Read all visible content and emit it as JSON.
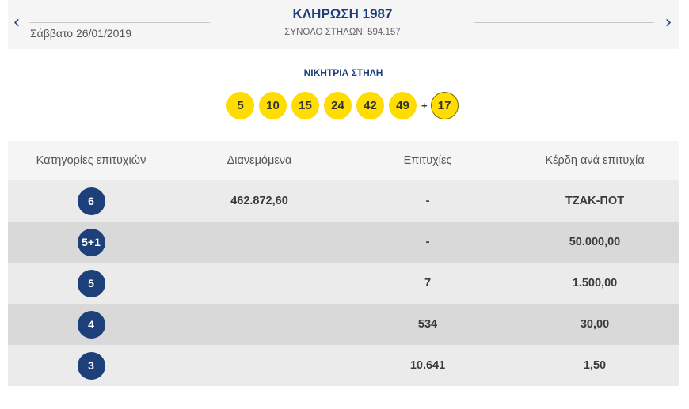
{
  "header": {
    "prev_icon": "‹",
    "next_icon": "›",
    "date": "Σάββατο 26/01/2019",
    "title": "ΚΛΗΡΩΣΗ 1987",
    "total": "ΣΥΝΟΛΟ ΣΤΗΛΩΝ: 594.157"
  },
  "winning": {
    "label": "ΝΙΚΗΤΡΙΑ ΣΤΗΛΗ",
    "numbers": [
      "5",
      "10",
      "15",
      "24",
      "42",
      "49"
    ],
    "plus": "+",
    "bonus": "17"
  },
  "table": {
    "headers": [
      "Κατηγορίες επιτυχιών",
      "Διανεμόμενα",
      "Επιτυχίες",
      "Κέρδη ανά επιτυχία"
    ],
    "rows": [
      {
        "category": "6",
        "distributed": "462.872,60",
        "winners": "-",
        "prize": "ΤΖΑΚ-ΠΟΤ"
      },
      {
        "category": "5+1",
        "distributed": "",
        "winners": "-",
        "prize": "50.000,00"
      },
      {
        "category": "5",
        "distributed": "",
        "winners": "7",
        "prize": "1.500,00"
      },
      {
        "category": "4",
        "distributed": "",
        "winners": "534",
        "prize": "30,00"
      },
      {
        "category": "3",
        "distributed": "",
        "winners": "10.641",
        "prize": "1,50"
      }
    ]
  }
}
